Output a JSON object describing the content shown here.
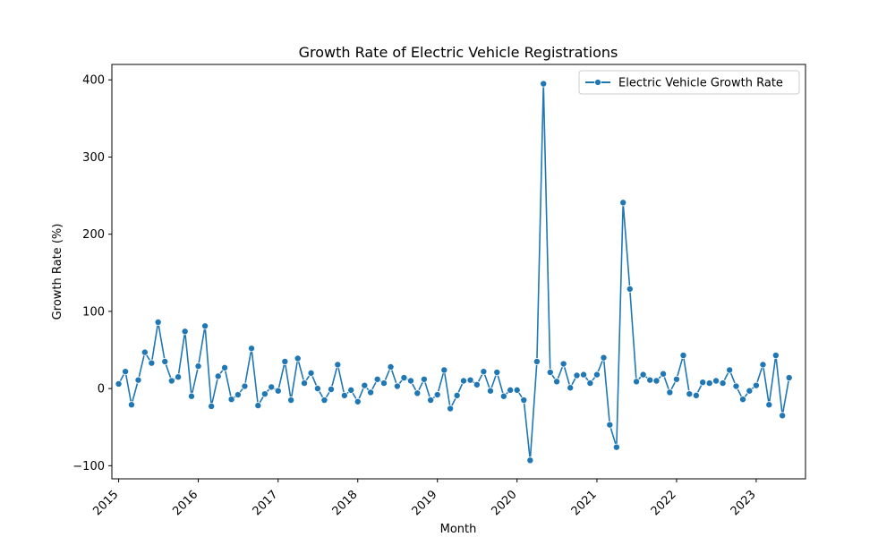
{
  "chart_data": {
    "type": "line",
    "title": "Growth Rate of Electric Vehicle Registrations",
    "xlabel": "Month",
    "ylabel": "Growth Rate (%)",
    "x_ticks": [
      "2015",
      "2016",
      "2017",
      "2018",
      "2019",
      "2020",
      "2021",
      "2022",
      "2023"
    ],
    "y_ticks": [
      "−100",
      "0",
      "100",
      "200",
      "300",
      "400"
    ],
    "y_tick_values": [
      -100,
      0,
      100,
      200,
      300,
      400
    ],
    "xlim": [
      "2014-12-01",
      "2023-08-15"
    ],
    "ylim": [
      -117,
      420
    ],
    "grid": false,
    "legend_position": "top-right",
    "series": [
      {
        "name": "Electric Vehicle Growth Rate",
        "color": "#1f77b4",
        "marker": "circle",
        "points": [
          {
            "x": "2015-01",
            "y": 6
          },
          {
            "x": "2015-02",
            "y": 22
          },
          {
            "x": "2015-03",
            "y": -21
          },
          {
            "x": "2015-04",
            "y": 11
          },
          {
            "x": "2015-05",
            "y": 47
          },
          {
            "x": "2015-06",
            "y": 33
          },
          {
            "x": "2015-07",
            "y": 86
          },
          {
            "x": "2015-08",
            "y": 35
          },
          {
            "x": "2015-09",
            "y": 10
          },
          {
            "x": "2015-10",
            "y": 15
          },
          {
            "x": "2015-11",
            "y": 74
          },
          {
            "x": "2015-12",
            "y": -10
          },
          {
            "x": "2016-01",
            "y": 29
          },
          {
            "x": "2016-02",
            "y": 81
          },
          {
            "x": "2016-03",
            "y": -23
          },
          {
            "x": "2016-04",
            "y": 16
          },
          {
            "x": "2016-05",
            "y": 27
          },
          {
            "x": "2016-06",
            "y": -14
          },
          {
            "x": "2016-07",
            "y": -8
          },
          {
            "x": "2016-08",
            "y": 3
          },
          {
            "x": "2016-09",
            "y": 52
          },
          {
            "x": "2016-10",
            "y": -22
          },
          {
            "x": "2016-11",
            "y": -7
          },
          {
            "x": "2016-12",
            "y": 2
          },
          {
            "x": "2017-01",
            "y": -3
          },
          {
            "x": "2017-02",
            "y": 35
          },
          {
            "x": "2017-03",
            "y": -15
          },
          {
            "x": "2017-04",
            "y": 39
          },
          {
            "x": "2017-05",
            "y": 7
          },
          {
            "x": "2017-06",
            "y": 20
          },
          {
            "x": "2017-07",
            "y": 0
          },
          {
            "x": "2017-08",
            "y": -15
          },
          {
            "x": "2017-09",
            "y": -1
          },
          {
            "x": "2017-10",
            "y": 31
          },
          {
            "x": "2017-11",
            "y": -9
          },
          {
            "x": "2017-12",
            "y": -2
          },
          {
            "x": "2018-01",
            "y": -17
          },
          {
            "x": "2018-02",
            "y": 4
          },
          {
            "x": "2018-03",
            "y": -5
          },
          {
            "x": "2018-04",
            "y": 12
          },
          {
            "x": "2018-05",
            "y": 7
          },
          {
            "x": "2018-06",
            "y": 28
          },
          {
            "x": "2018-07",
            "y": 3
          },
          {
            "x": "2018-08",
            "y": 14
          },
          {
            "x": "2018-09",
            "y": 10
          },
          {
            "x": "2018-10",
            "y": -6
          },
          {
            "x": "2018-11",
            "y": 12
          },
          {
            "x": "2018-12",
            "y": -15
          },
          {
            "x": "2019-01",
            "y": -8
          },
          {
            "x": "2019-02",
            "y": 24
          },
          {
            "x": "2019-03",
            "y": -26
          },
          {
            "x": "2019-04",
            "y": -9
          },
          {
            "x": "2019-05",
            "y": 10
          },
          {
            "x": "2019-06",
            "y": 11
          },
          {
            "x": "2019-07",
            "y": 5
          },
          {
            "x": "2019-08",
            "y": 22
          },
          {
            "x": "2019-09",
            "y": -3
          },
          {
            "x": "2019-10",
            "y": 21
          },
          {
            "x": "2019-11",
            "y": -10
          },
          {
            "x": "2019-12",
            "y": -2
          },
          {
            "x": "2020-01",
            "y": -2
          },
          {
            "x": "2020-02",
            "y": -15
          },
          {
            "x": "2020-03",
            "y": -93
          },
          {
            "x": "2020-04",
            "y": 35
          },
          {
            "x": "2020-05",
            "y": 395
          },
          {
            "x": "2020-06",
            "y": 21
          },
          {
            "x": "2020-07",
            "y": 9
          },
          {
            "x": "2020-08",
            "y": 32
          },
          {
            "x": "2020-09",
            "y": 1
          },
          {
            "x": "2020-10",
            "y": 17
          },
          {
            "x": "2020-11",
            "y": 18
          },
          {
            "x": "2020-12",
            "y": 7
          },
          {
            "x": "2021-01",
            "y": 18
          },
          {
            "x": "2021-02",
            "y": 40
          },
          {
            "x": "2021-03",
            "y": -47
          },
          {
            "x": "2021-04",
            "y": -76
          },
          {
            "x": "2021-05",
            "y": 241
          },
          {
            "x": "2021-06",
            "y": 129
          },
          {
            "x": "2021-07",
            "y": 9
          },
          {
            "x": "2021-08",
            "y": 18
          },
          {
            "x": "2021-09",
            "y": 11
          },
          {
            "x": "2021-10",
            "y": 10
          },
          {
            "x": "2021-11",
            "y": 19
          },
          {
            "x": "2021-12",
            "y": -5
          },
          {
            "x": "2022-01",
            "y": 12
          },
          {
            "x": "2022-02",
            "y": 43
          },
          {
            "x": "2022-03",
            "y": -7
          },
          {
            "x": "2022-04",
            "y": -9
          },
          {
            "x": "2022-05",
            "y": 8
          },
          {
            "x": "2022-06",
            "y": 7
          },
          {
            "x": "2022-07",
            "y": 10
          },
          {
            "x": "2022-08",
            "y": 7
          },
          {
            "x": "2022-09",
            "y": 24
          },
          {
            "x": "2022-10",
            "y": 3
          },
          {
            "x": "2022-11",
            "y": -14
          },
          {
            "x": "2022-12",
            "y": -3
          },
          {
            "x": "2023-01",
            "y": 4
          },
          {
            "x": "2023-02",
            "y": 31
          },
          {
            "x": "2023-03",
            "y": -21
          },
          {
            "x": "2023-04",
            "y": 43
          },
          {
            "x": "2023-05",
            "y": -35
          },
          {
            "x": "2023-06",
            "y": 14
          }
        ]
      }
    ]
  }
}
